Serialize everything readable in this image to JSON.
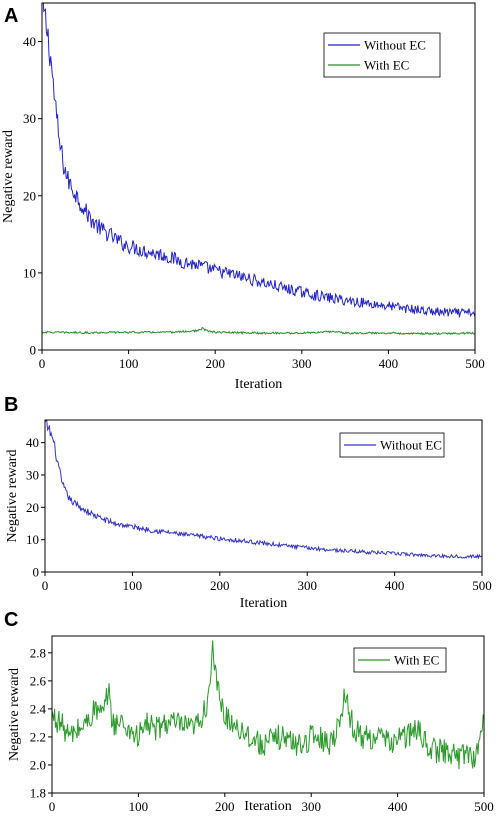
{
  "chart_data": [
    {
      "panel_label": "A",
      "type": "line",
      "xlabel": "Iteration",
      "ylabel": "Negative reward",
      "xlim": [
        0,
        500
      ],
      "ylim": [
        0,
        45
      ],
      "xticks": [
        0,
        100,
        200,
        300,
        400,
        500
      ],
      "yticks": [
        0,
        10,
        20,
        30,
        40
      ],
      "legend_position": "top-right",
      "grid": false,
      "series": [
        {
          "name": "Without EC",
          "color": "#2323c8",
          "x": [
            0,
            5,
            10,
            15,
            20,
            25,
            30,
            40,
            50,
            60,
            70,
            80,
            90,
            100,
            120,
            140,
            160,
            180,
            200,
            220,
            240,
            260,
            280,
            300,
            320,
            340,
            360,
            380,
            400,
            420,
            440,
            460,
            480,
            500
          ],
          "y": [
            45,
            42,
            38,
            32,
            27,
            24,
            22,
            20,
            18,
            16.5,
            15.5,
            14.8,
            14,
            13.5,
            12.8,
            12.3,
            11.5,
            11,
            10.3,
            9.8,
            9.2,
            8.6,
            8,
            7.5,
            7,
            6.6,
            6.3,
            6,
            5.7,
            5.4,
            5.1,
            4.9,
            4.8,
            4.8
          ]
        },
        {
          "name": "With EC",
          "color": "#2a8c2a",
          "x": [
            0,
            50,
            100,
            150,
            180,
            185,
            190,
            200,
            250,
            300,
            340,
            350,
            400,
            450,
            500
          ],
          "y": [
            2.3,
            2.25,
            2.3,
            2.3,
            2.5,
            2.8,
            2.5,
            2.3,
            2.2,
            2.2,
            2.4,
            2.2,
            2.2,
            2.1,
            2.2
          ]
        }
      ]
    },
    {
      "panel_label": "B",
      "type": "line",
      "xlabel": "Iteration",
      "ylabel": "Negative reward",
      "xlim": [
        0,
        500
      ],
      "ylim": [
        0,
        47
      ],
      "xticks": [
        0,
        100,
        200,
        300,
        400,
        500
      ],
      "yticks": [
        0,
        10,
        20,
        30,
        40
      ],
      "legend_position": "top-right",
      "grid": false,
      "series": [
        {
          "name": "Without EC",
          "color": "#3333cc",
          "x": [
            0,
            5,
            10,
            15,
            20,
            25,
            30,
            40,
            50,
            60,
            70,
            80,
            90,
            100,
            120,
            140,
            160,
            180,
            200,
            220,
            240,
            260,
            280,
            300,
            320,
            340,
            360,
            380,
            400,
            420,
            440,
            460,
            480,
            500
          ],
          "y": [
            46,
            44,
            40,
            33,
            27,
            24,
            22,
            20,
            18.5,
            17,
            16,
            15,
            14.5,
            14,
            13,
            12.3,
            11.5,
            11,
            10.3,
            9.8,
            9.2,
            8.6,
            8,
            7.5,
            7,
            6.6,
            6.3,
            6,
            5.7,
            5.4,
            5.1,
            4.9,
            4.8,
            4.8
          ]
        }
      ]
    },
    {
      "panel_label": "C",
      "type": "line",
      "xlabel": "Iteration",
      "ylabel": "Negative reward",
      "xlim": [
        0,
        500
      ],
      "ylim": [
        1.8,
        2.92
      ],
      "xticks": [
        0,
        100,
        200,
        300,
        400,
        500
      ],
      "yticks": [
        1.8,
        2.0,
        2.2,
        2.4,
        2.6,
        2.8
      ],
      "legend_position": "top-right",
      "grid": false,
      "series": [
        {
          "name": "With EC",
          "color": "#2a9a2a",
          "x": [
            0,
            10,
            20,
            30,
            40,
            50,
            60,
            65,
            70,
            80,
            90,
            100,
            110,
            120,
            130,
            140,
            150,
            160,
            170,
            180,
            183,
            186,
            190,
            195,
            200,
            210,
            220,
            230,
            240,
            250,
            260,
            270,
            280,
            290,
            300,
            310,
            320,
            330,
            335,
            338,
            345,
            350,
            360,
            370,
            380,
            390,
            400,
            410,
            420,
            430,
            440,
            450,
            460,
            470,
            480,
            490,
            495,
            500
          ],
          "y": [
            2.35,
            2.3,
            2.2,
            2.25,
            2.3,
            2.4,
            2.35,
            2.55,
            2.3,
            2.3,
            2.25,
            2.2,
            2.3,
            2.25,
            2.3,
            2.3,
            2.28,
            2.25,
            2.3,
            2.45,
            2.65,
            2.8,
            2.6,
            2.45,
            2.35,
            2.3,
            2.25,
            2.2,
            2.15,
            2.15,
            2.2,
            2.2,
            2.15,
            2.15,
            2.2,
            2.2,
            2.15,
            2.25,
            2.4,
            2.5,
            2.35,
            2.25,
            2.2,
            2.2,
            2.2,
            2.15,
            2.2,
            2.2,
            2.25,
            2.2,
            2.1,
            2.1,
            2.1,
            2.05,
            2.1,
            2.05,
            2.15,
            2.38
          ]
        }
      ]
    }
  ]
}
